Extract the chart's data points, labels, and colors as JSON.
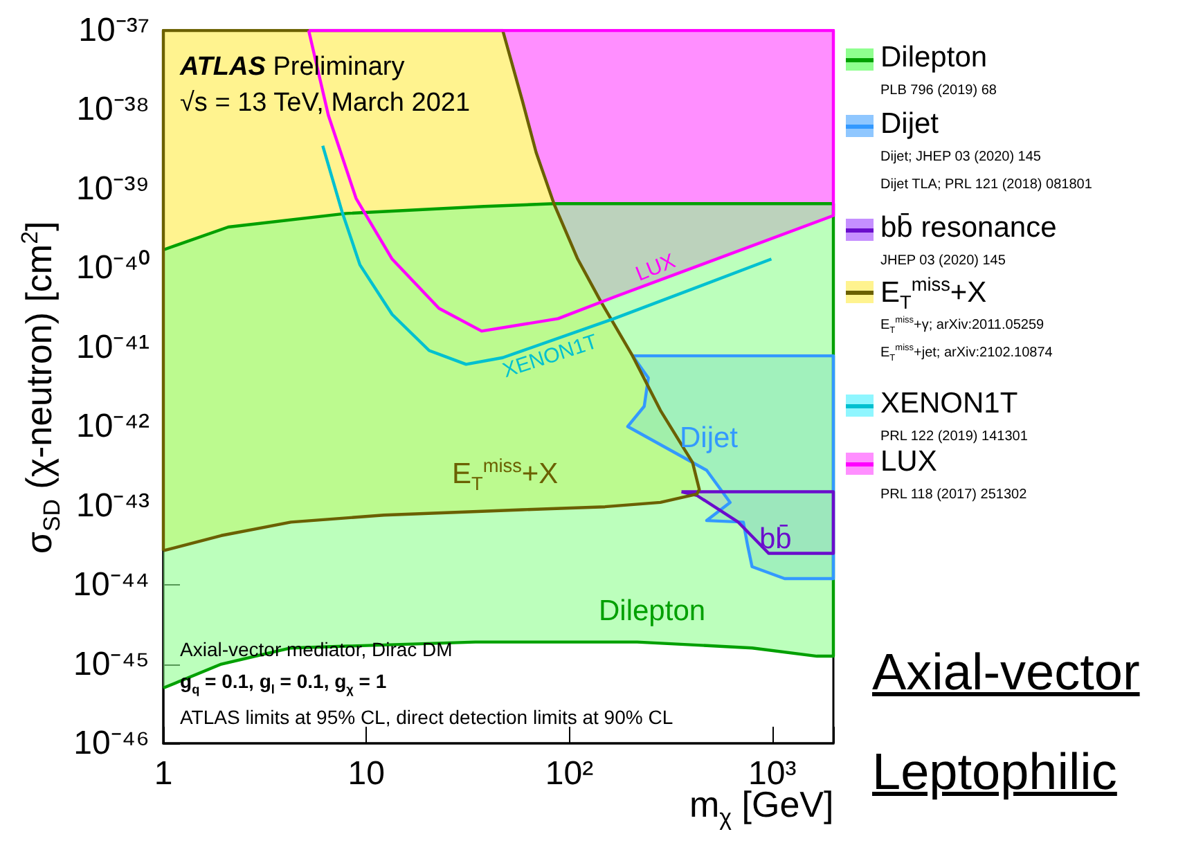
{
  "chart_data": {
    "type": "area",
    "xlabel": "m$_{χ}$ [GeV]",
    "ylabel": "σ$_{SD}$ (χ-neutron) [cm$^{2}$]",
    "log": "xy",
    "xlim": [
      1,
      2000
    ],
    "ylim": [
      1e-46,
      1e-37
    ],
    "xticks": [
      {
        "value": 1,
        "label": "1"
      },
      {
        "value": 10,
        "label": "10"
      },
      {
        "value": 100,
        "label": "10²"
      },
      {
        "value": 1000,
        "label": "10³"
      }
    ],
    "yticks": [
      {
        "value": 1e-46,
        "label": "10⁻⁴⁶"
      },
      {
        "value": 1e-45,
        "label": "10⁻⁴⁵"
      },
      {
        "value": 1e-44,
        "label": "10⁻⁴⁴"
      },
      {
        "value": 1e-43,
        "label": "10⁻⁴³"
      },
      {
        "value": 1e-42,
        "label": "10⁻⁴²"
      },
      {
        "value": 1e-41,
        "label": "10⁻⁴¹"
      },
      {
        "value": 1e-40,
        "label": "10⁻⁴⁰"
      },
      {
        "value": 1e-39,
        "label": "10⁻³⁹"
      },
      {
        "value": 1e-38,
        "label": "10⁻³⁸"
      },
      {
        "value": 1e-37,
        "label": "10⁻³⁷"
      }
    ],
    "legend": "right",
    "series": [
      {
        "name": "Dilepton",
        "color": "#00a000",
        "x": [
          1,
          1.93,
          4.25,
          34.4,
          216,
          796,
          1660,
          2000,
          2000,
          400,
          84,
          38,
          7.96,
          2.09,
          1
        ],
        "values": [
          5e-46,
          1e-45,
          1.6e-45,
          1.9e-45,
          1.9e-45,
          1.6e-45,
          1.26e-45,
          1.26e-45,
          6.5e-40,
          6.5e-40,
          6.5e-40,
          6e-40,
          4.9e-40,
          3.3e-40,
          1.7e-40
        ]
      },
      {
        "name": "Dijet",
        "color": "#3399ff",
        "x": [
          205,
          2000,
          2000,
          1150,
          795,
          755,
          720,
          475,
          620,
          475,
          330,
          194,
          234,
          245,
          205
        ],
        "values": [
          7.8e-42,
          7.8e-42,
          1.2e-44,
          1.2e-44,
          1.7e-44,
          3.2e-44,
          6.2e-44,
          6.5e-44,
          1.1e-43,
          2.8e-43,
          4.7e-43,
          1e-42,
          1.8e-42,
          4.1e-42,
          7.8e-42
        ]
      },
      {
        "name": "bb̄ resonance",
        "color": "#6a0dcc",
        "x": [
          357,
          2000,
          2000,
          960,
          680,
          425,
          357
        ],
        "values": [
          1.5e-43,
          1.5e-43,
          2.5e-44,
          2.5e-44,
          6.2e-44,
          1.35e-43,
          1.5e-43
        ]
      },
      {
        "name": "E$_{T}$$^{miss}$+X",
        "color": "#6b6000",
        "x": [
          1,
          1.93,
          4.25,
          12.2,
          58.7,
          150,
          281,
          425,
          437,
          405,
          281,
          205,
          142,
          110,
          84,
          68.6,
          58.7,
          47,
          1,
          1
        ],
        "values": [
          2.7e-44,
          4.2e-44,
          6.2e-44,
          7.6e-44,
          8.9e-44,
          9.7e-44,
          1.1e-43,
          1.4e-43,
          1.6e-43,
          3.5e-43,
          1.6e-42,
          7.8e-42,
          3.9e-41,
          1.3e-40,
          6.5e-40,
          2.9e-39,
          1.3e-38,
          1e-37,
          1e-37,
          2.7e-44
        ]
      },
      {
        "name": "XENON1T",
        "type": "line",
        "color": "#00c0d0",
        "x": [
          6.1,
          7.6,
          9.3,
          13.4,
          20.4,
          31,
          47,
          166,
          990
        ],
        "values": [
          3.5e-39,
          5.1e-40,
          1.1e-40,
          2.6e-41,
          9.1e-42,
          6.1e-42,
          7.4e-42,
          2.3e-41,
          1.3e-40
        ]
      },
      {
        "name": "LUX",
        "color": "#ff00ff",
        "x": [
          5.2,
          6.5,
          8.9,
          13.4,
          22.8,
          37,
          88,
          166,
          2000,
          2000,
          5.2
        ],
        "values": [
          1e-37,
          8.5e-39,
          7.6e-40,
          1.3e-40,
          3.1e-41,
          1.6e-41,
          2.3e-41,
          4.3e-41,
          4.6e-40,
          1e-37,
          1e-37
        ]
      }
    ],
    "annotations": [
      "ATLAS Preliminary",
      "√s = 13 TeV, March 2021",
      "Axial-vector mediator, Dirac DM",
      "g$_{q}$ = 0.1, g$_{l}$ = 0.1, g$_{χ}$ = 1",
      "ATLAS limits at 95% CL, direct detection limits at 90% CL",
      "Axial-vector",
      "Leptophilic",
      "PLB 796 (2019) 68",
      "Dijet; JHEP 03 (2020) 145",
      "Dijet TLA; PRL 121 (2018) 081801",
      "JHEP 03 (2020) 145",
      "E$_{T}$$^{miss}$+γ; arXiv:2011.05259",
      "E$_{T}$$^{miss}$+jet; arXiv:2102.10874",
      "PRL 122 (2019) 141301",
      "PRL 118 (2017) 251302",
      "Dilepton",
      "Dijet",
      "bb̄",
      "E$_{T}$$^{miss}$+X",
      "XENON1T",
      "LUX"
    ]
  }
}
